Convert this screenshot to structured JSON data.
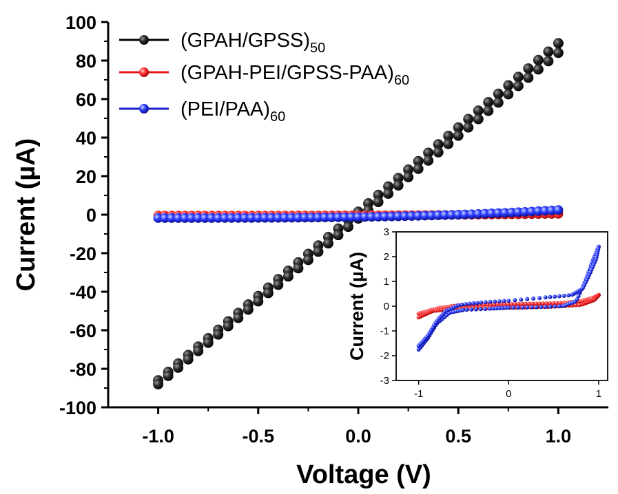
{
  "chart_data": [
    {
      "type": "scatter",
      "xlabel": "Voltage (V)",
      "ylabel": "Current (µA)",
      "xlim": [
        -1.25,
        1.25
      ],
      "ylim": [
        -100,
        100
      ],
      "xticks": [
        "-1.0",
        "-0.5",
        "0.0",
        "0.5",
        "1.0"
      ],
      "xtick_values": [
        -1.0,
        -0.5,
        0.0,
        0.5,
        1.0
      ],
      "yticks": [
        "100",
        "80",
        "60",
        "40",
        "20",
        "0",
        "-20",
        "-40",
        "-60",
        "-80",
        "-100"
      ],
      "ytick_values": [
        100,
        80,
        60,
        40,
        20,
        0,
        -20,
        -40,
        -60,
        -80,
        -100
      ],
      "legend_position": "top-left",
      "series": [
        {
          "name": "(GPAH/GPSS)",
          "name_sub": "50",
          "color": "#000000",
          "marker": "sphere",
          "sweep_up": {
            "x_start": -1.0,
            "x_end": 1.0,
            "y_start": -86,
            "y_end": 89
          },
          "sweep_down": {
            "x_start": 1.0,
            "x_end": -1.0,
            "y_start": 84,
            "y_end": -88
          },
          "points_per_sweep": 40
        },
        {
          "name": "(GPAH-PEI/GPSS-PAA)",
          "name_sub": "60",
          "color": "#e8141b",
          "marker": "sphere",
          "y_min": -0.45,
          "y_max": 0.45
        },
        {
          "name": "(PEI/PAA)",
          "name_sub": "60",
          "color": "#1c1ccf",
          "marker": "sphere",
          "y_min": -1.75,
          "y_max": 2.4
        }
      ]
    },
    {
      "type": "scatter",
      "inset": true,
      "xlabel": "",
      "ylabel": "Current (µA)",
      "xlim": [
        -1.25,
        1.1
      ],
      "ylim": [
        -3,
        3
      ],
      "xticks": [
        "-1",
        "0",
        "1"
      ],
      "xtick_values": [
        -1,
        0,
        1
      ],
      "yticks": [
        "3",
        "2",
        "1",
        "0",
        "-1",
        "-2",
        "-3"
      ],
      "ytick_values": [
        3,
        2,
        1,
        0,
        -1,
        -2,
        -3
      ],
      "series": [
        {
          "name": "(GPAH-PEI/GPSS-PAA)",
          "color": "#e8141b",
          "upper_branch": [
            [
              -1.0,
              -0.3
            ],
            [
              -0.8,
              -0.1
            ],
            [
              -0.6,
              0.02
            ],
            [
              -0.3,
              0.06
            ],
            [
              0.0,
              0.08
            ],
            [
              0.3,
              0.1
            ],
            [
              0.6,
              0.13
            ],
            [
              0.8,
              0.2
            ],
            [
              0.95,
              0.35
            ],
            [
              1.0,
              0.45
            ]
          ],
          "lower_branch": [
            [
              1.0,
              0.45
            ],
            [
              0.95,
              0.25
            ],
            [
              0.8,
              0.05
            ],
            [
              0.5,
              -0.02
            ],
            [
              0.2,
              -0.05
            ],
            [
              0.0,
              -0.06
            ],
            [
              -0.3,
              -0.07
            ],
            [
              -0.6,
              -0.1
            ],
            [
              -0.85,
              -0.2
            ],
            [
              -1.0,
              -0.45
            ]
          ]
        },
        {
          "name": "(PEI/PAA)",
          "color": "#1c1ccf",
          "upper_branch": [
            [
              -1.0,
              -1.75
            ],
            [
              -0.9,
              -1.3
            ],
            [
              -0.8,
              -0.7
            ],
            [
              -0.65,
              -0.25
            ],
            [
              -0.5,
              -0.15
            ],
            [
              -0.2,
              -0.1
            ],
            [
              0.0,
              -0.06
            ],
            [
              0.3,
              -0.04
            ],
            [
              0.6,
              0.0
            ],
            [
              0.75,
              0.2
            ],
            [
              0.85,
              1.0
            ],
            [
              0.93,
              1.8
            ],
            [
              1.0,
              2.4
            ]
          ],
          "lower_branch": [
            [
              1.0,
              2.4
            ],
            [
              0.97,
              1.9
            ],
            [
              0.9,
              1.3
            ],
            [
              0.82,
              0.7
            ],
            [
              0.7,
              0.45
            ],
            [
              0.4,
              0.35
            ],
            [
              0.0,
              0.22
            ],
            [
              -0.3,
              0.15
            ],
            [
              -0.55,
              0.05
            ],
            [
              -0.7,
              -0.2
            ],
            [
              -0.8,
              -0.6
            ],
            [
              -0.9,
              -1.2
            ],
            [
              -1.0,
              -1.6
            ]
          ]
        }
      ]
    }
  ]
}
